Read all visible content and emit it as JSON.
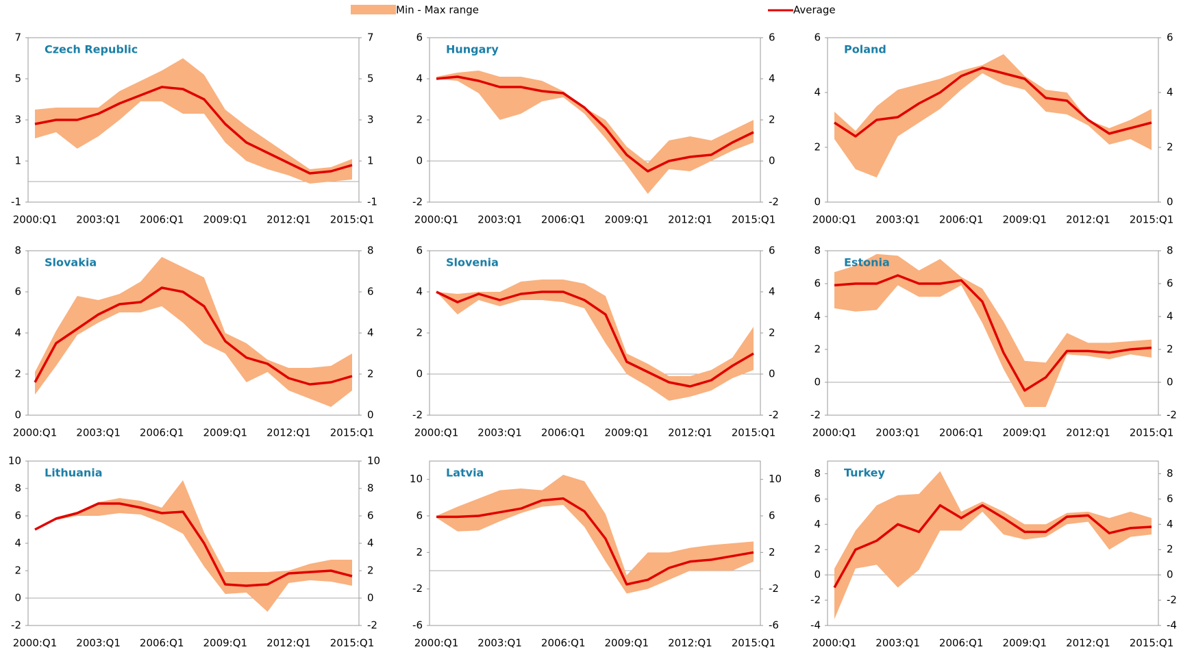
{
  "legend": [
    {
      "name": "Min - Max range",
      "color": "#f9b17f"
    },
    {
      "name": "Average",
      "color": "#e00000"
    }
  ],
  "chart_data": [
    {
      "type": "range-line",
      "title": "Czech Republic",
      "categories": [
        "2000:Q1",
        null,
        null,
        "2003:Q1",
        null,
        null,
        "2006:Q1",
        null,
        null,
        "2009:Q1",
        null,
        null,
        "2012:Q1",
        null,
        null,
        "2015:Q1"
      ],
      "average": [
        2.8,
        3.0,
        3.0,
        3.3,
        3.8,
        4.2,
        4.6,
        4.5,
        4.0,
        2.8,
        1.9,
        1.4,
        0.9,
        0.4,
        0.5,
        0.8
      ],
      "max": [
        3.5,
        3.6,
        3.6,
        3.6,
        4.4,
        4.9,
        5.4,
        6.0,
        5.2,
        3.5,
        2.7,
        2.0,
        1.3,
        0.6,
        0.7,
        1.1
      ],
      "min": [
        2.1,
        2.4,
        1.6,
        2.2,
        3.0,
        3.9,
        3.9,
        3.3,
        3.3,
        1.9,
        1.0,
        0.6,
        0.3,
        -0.1,
        0.0,
        0.1
      ],
      "ylim": [
        -1,
        7
      ],
      "yticks": [
        -1,
        1,
        3,
        5,
        7
      ],
      "y2lim": [
        -1,
        7
      ],
      "y2ticks": [
        -1,
        1,
        3,
        5,
        7
      ]
    },
    {
      "type": "range-line",
      "title": "Hungary",
      "categories": [
        "2000:Q1",
        null,
        null,
        "2003:Q1",
        null,
        null,
        "2006:Q1",
        null,
        null,
        "2009:Q1",
        null,
        null,
        "2012:Q1",
        null,
        null,
        "2015:Q1"
      ],
      "average": [
        4.0,
        4.1,
        3.9,
        3.6,
        3.6,
        3.4,
        3.3,
        2.6,
        1.6,
        0.3,
        -0.5,
        0.0,
        0.2,
        0.3,
        0.9,
        1.4
      ],
      "max": [
        4.1,
        4.3,
        4.4,
        4.1,
        4.1,
        3.9,
        3.4,
        2.6,
        2.0,
        0.7,
        -0.1,
        1.0,
        1.2,
        1.0,
        1.5,
        2.0
      ],
      "min": [
        4.0,
        3.9,
        3.3,
        2.0,
        2.3,
        2.9,
        3.1,
        2.3,
        1.1,
        -0.2,
        -1.6,
        -0.4,
        -0.5,
        0.0,
        0.5,
        0.9
      ],
      "ylim": [
        -2,
        6
      ],
      "yticks": [
        -2,
        0,
        2,
        4,
        6
      ],
      "y2lim": [
        -2,
        6
      ],
      "y2ticks": [
        -2,
        0,
        2,
        4,
        6
      ]
    },
    {
      "type": "range-line",
      "title": "Poland",
      "categories": [
        "2000:Q1",
        null,
        null,
        "2003:Q1",
        null,
        null,
        "2006:Q1",
        null,
        null,
        "2009:Q1",
        null,
        null,
        "2012:Q1",
        null,
        null,
        "2015:Q1"
      ],
      "average": [
        2.9,
        2.4,
        3.0,
        3.1,
        3.6,
        4.0,
        4.6,
        4.9,
        4.7,
        4.5,
        3.8,
        3.7,
        3.0,
        2.5,
        2.7,
        2.9
      ],
      "max": [
        3.3,
        2.6,
        3.5,
        4.1,
        4.3,
        4.5,
        4.8,
        5.0,
        5.4,
        4.6,
        4.1,
        4.0,
        3.0,
        2.7,
        3.0,
        3.4
      ],
      "min": [
        2.3,
        1.2,
        0.9,
        2.4,
        2.9,
        3.4,
        4.1,
        4.7,
        4.3,
        4.1,
        3.3,
        3.2,
        2.8,
        2.1,
        2.3,
        1.9
      ],
      "ylim": [
        0,
        6
      ],
      "yticks": [
        0,
        2,
        4,
        6
      ],
      "y2lim": [
        0,
        6
      ],
      "y2ticks": [
        0,
        2,
        4,
        6
      ]
    },
    {
      "type": "range-line",
      "title": "Slovakia",
      "categories": [
        "2000:Q1",
        null,
        null,
        "2003:Q1",
        null,
        null,
        "2006:Q1",
        null,
        null,
        "2009:Q1",
        null,
        null,
        "2012:Q1",
        null,
        null,
        "2015:Q1"
      ],
      "average": [
        1.6,
        3.5,
        4.2,
        4.9,
        5.4,
        5.5,
        6.2,
        6.0,
        5.3,
        3.6,
        2.8,
        2.5,
        1.8,
        1.5,
        1.6,
        1.9
      ],
      "max": [
        2.1,
        4.1,
        5.8,
        5.6,
        5.9,
        6.5,
        7.7,
        7.2,
        6.7,
        4.0,
        3.5,
        2.7,
        2.3,
        2.3,
        2.4,
        3.0
      ],
      "min": [
        1.0,
        2.4,
        3.9,
        4.5,
        5.0,
        5.0,
        5.3,
        4.5,
        3.5,
        3.0,
        1.6,
        2.1,
        1.2,
        0.8,
        0.4,
        1.2
      ],
      "ylim": [
        0,
        8
      ],
      "yticks": [
        0,
        2,
        4,
        6,
        8
      ],
      "y2lim": [
        0,
        8
      ],
      "y2ticks": [
        0,
        2,
        4,
        6,
        8
      ]
    },
    {
      "type": "range-line",
      "title": "Slovenia",
      "categories": [
        "2000:Q1",
        null,
        null,
        "2003:Q1",
        null,
        null,
        "2006:Q1",
        null,
        null,
        "2009:Q1",
        null,
        null,
        "2012:Q1",
        null,
        null,
        "2015:Q1"
      ],
      "average": [
        4.0,
        3.5,
        3.9,
        3.6,
        3.9,
        4.0,
        4.0,
        3.6,
        2.9,
        0.6,
        0.1,
        -0.4,
        -0.6,
        -0.3,
        0.4,
        1.0
      ],
      "max": [
        4.0,
        3.9,
        4.0,
        4.0,
        4.5,
        4.6,
        4.6,
        4.4,
        3.8,
        1.0,
        0.5,
        -0.1,
        -0.1,
        0.2,
        0.8,
        2.3
      ],
      "min": [
        4.0,
        2.9,
        3.6,
        3.3,
        3.6,
        3.6,
        3.5,
        3.2,
        1.5,
        0.0,
        -0.6,
        -1.3,
        -1.1,
        -0.8,
        -0.2,
        0.2
      ],
      "ylim": [
        -2,
        6
      ],
      "yticks": [
        -2,
        0,
        2,
        4,
        6
      ],
      "y2lim": [
        -2,
        6
      ],
      "y2ticks": [
        -2,
        0,
        2,
        4,
        6
      ]
    },
    {
      "type": "range-line",
      "title": "Estonia",
      "categories": [
        "2000:Q1",
        null,
        null,
        "2003:Q1",
        null,
        null,
        "2006:Q1",
        null,
        null,
        "2009:Q1",
        null,
        null,
        "2012:Q1",
        null,
        null,
        "2015:Q1"
      ],
      "average": [
        5.9,
        6.0,
        6.0,
        6.5,
        6.0,
        6.0,
        6.2,
        4.9,
        1.8,
        -0.5,
        0.3,
        1.9,
        1.9,
        1.8,
        2.0,
        2.1
      ],
      "max": [
        6.7,
        7.1,
        7.8,
        7.7,
        6.8,
        7.5,
        6.4,
        5.7,
        3.7,
        1.3,
        1.2,
        3.0,
        2.4,
        2.4,
        2.5,
        2.6
      ],
      "min": [
        4.5,
        4.3,
        4.4,
        5.9,
        5.2,
        5.2,
        5.9,
        3.6,
        0.8,
        -1.5,
        -1.5,
        1.7,
        1.6,
        1.4,
        1.7,
        1.5
      ],
      "ylim": [
        -2,
        8
      ],
      "yticks": [
        -2,
        0,
        2,
        4,
        6,
        8
      ],
      "y2lim": [
        -2,
        8
      ],
      "y2ticks": [
        -2,
        0,
        2,
        4,
        6,
        8
      ]
    },
    {
      "type": "range-line",
      "title": "Lithuania",
      "categories": [
        "2000:Q1",
        null,
        null,
        "2003:Q1",
        null,
        null,
        "2006:Q1",
        null,
        null,
        "2009:Q1",
        null,
        null,
        "2012:Q1",
        null,
        null,
        "2015:Q1"
      ],
      "average": [
        5.0,
        5.8,
        6.2,
        6.9,
        6.9,
        6.6,
        6.2,
        6.3,
        4.0,
        1.0,
        0.9,
        1.0,
        1.8,
        1.9,
        2.0,
        1.6
      ],
      "max": [
        5.0,
        5.9,
        6.3,
        7.0,
        7.3,
        7.1,
        6.6,
        8.6,
        4.8,
        1.9,
        1.9,
        1.9,
        2.0,
        2.5,
        2.8,
        2.8
      ],
      "min": [
        5.0,
        5.7,
        6.0,
        6.0,
        6.2,
        6.1,
        5.5,
        4.7,
        2.3,
        0.3,
        0.4,
        -1.0,
        1.1,
        1.3,
        1.2,
        0.9
      ],
      "ylim": [
        -2,
        10
      ],
      "yticks": [
        -2,
        0,
        2,
        4,
        6,
        8,
        10
      ],
      "y2lim": [
        -2,
        10
      ],
      "y2ticks": [
        -2,
        0,
        2,
        4,
        6,
        8,
        10
      ]
    },
    {
      "type": "range-line",
      "title": "Latvia",
      "categories": [
        "2000:Q1",
        null,
        null,
        "2003:Q1",
        null,
        null,
        "2006:Q1",
        null,
        null,
        "2009:Q1",
        null,
        null,
        "2012:Q1",
        null,
        null,
        "2015:Q1"
      ],
      "average": [
        5.9,
        5.9,
        6.0,
        6.4,
        6.8,
        7.7,
        7.9,
        6.5,
        3.5,
        -1.5,
        -1.0,
        0.3,
        1.0,
        1.2,
        1.6,
        2.0
      ],
      "max": [
        6.0,
        7.0,
        7.9,
        8.8,
        9.0,
        8.8,
        10.5,
        9.8,
        6.2,
        -0.5,
        2.0,
        2.0,
        2.5,
        2.8,
        3.0,
        3.2
      ],
      "min": [
        5.8,
        4.3,
        4.4,
        5.4,
        6.3,
        7.0,
        7.2,
        4.8,
        1.0,
        -2.5,
        -2.0,
        -1.0,
        0.0,
        0.0,
        0.0,
        1.0
      ],
      "ylim": [
        -6,
        12
      ],
      "yticks": [
        -6,
        -2,
        2,
        6,
        10
      ],
      "y2lim": [
        -6,
        12
      ],
      "y2ticks": [
        -6,
        -2,
        2,
        6,
        10
      ]
    },
    {
      "type": "range-line",
      "title": "Turkey",
      "categories": [
        "2000:Q1",
        null,
        null,
        "2003:Q1",
        null,
        null,
        "2006:Q1",
        null,
        null,
        "2009:Q1",
        null,
        null,
        "2012:Q1",
        null,
        null,
        "2015:Q1"
      ],
      "average": [
        -1.0,
        2.0,
        2.7,
        4.0,
        3.4,
        5.5,
        4.5,
        5.5,
        4.5,
        3.4,
        3.4,
        4.6,
        4.7,
        3.3,
        3.7,
        3.8
      ],
      "max": [
        0.5,
        3.5,
        5.5,
        6.3,
        6.4,
        8.2,
        5.0,
        5.8,
        5.0,
        4.0,
        4.0,
        4.9,
        5.0,
        4.5,
        5.0,
        4.5
      ],
      "min": [
        -3.5,
        0.5,
        0.8,
        -1.0,
        0.4,
        3.5,
        3.5,
        5.0,
        3.2,
        2.8,
        3.0,
        4.0,
        4.2,
        2.0,
        3.0,
        3.2
      ],
      "ylim": [
        -4,
        9
      ],
      "yticks": [
        -4,
        -2,
        0,
        2,
        4,
        6,
        8
      ],
      "y2lim": [
        -4,
        9
      ],
      "y2ticks": [
        -4,
        -2,
        0,
        2,
        4,
        6,
        8
      ]
    }
  ]
}
